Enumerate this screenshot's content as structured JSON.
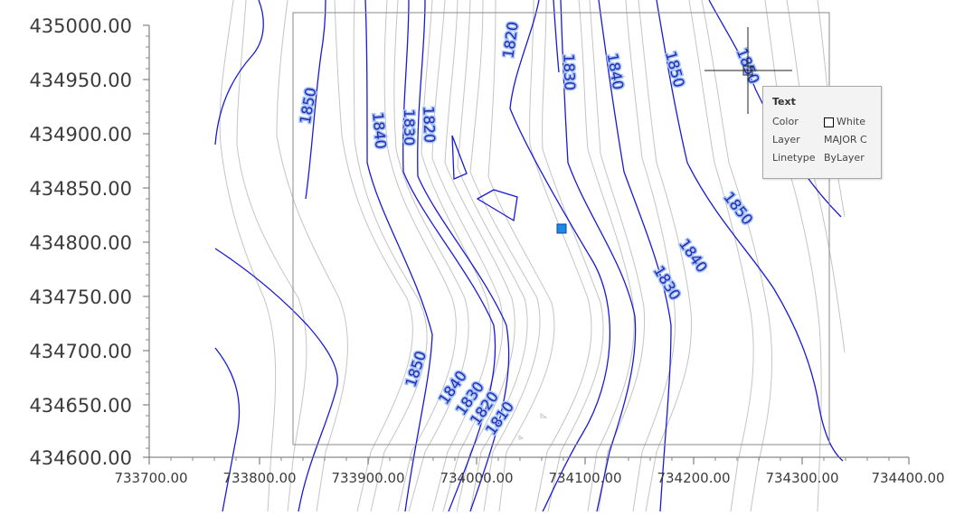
{
  "axes": {
    "y_labels": [
      "435000.00",
      "434950.00",
      "434900.00",
      "434850.00",
      "434800.00",
      "434750.00",
      "434700.00",
      "434650.00",
      "434600.00"
    ],
    "x_labels": [
      "733700.00",
      "733800.00",
      "733900.00",
      "734000.00",
      "734100.00",
      "734200.00",
      "734300.00",
      "734400.00"
    ]
  },
  "contour_labels": [
    {
      "text": "1850"
    },
    {
      "text": "1840"
    },
    {
      "text": "1830"
    },
    {
      "text": "1820"
    },
    {
      "text": "1820"
    },
    {
      "text": "1830"
    },
    {
      "text": "1840"
    },
    {
      "text": "1850"
    },
    {
      "text": "1850"
    },
    {
      "text": "1850"
    },
    {
      "text": "1840"
    },
    {
      "text": "1830"
    },
    {
      "text": "1850"
    },
    {
      "text": "1840"
    },
    {
      "text": "1830"
    },
    {
      "text": "1820"
    },
    {
      "text": "1810"
    }
  ],
  "tooltip": {
    "title": "Text",
    "rows": [
      {
        "key": "Color",
        "value": "White"
      },
      {
        "key": "Layer",
        "value": "MAJOR C"
      },
      {
        "key": "Linetype",
        "value": "ByLayer"
      }
    ]
  },
  "colors": {
    "major_contour": "#1a1ad6",
    "minor_contour": "#c4c4c4",
    "frame": "#8a8a8a",
    "grip": "#1e88e5",
    "label_halo": "#9ec3ff"
  }
}
